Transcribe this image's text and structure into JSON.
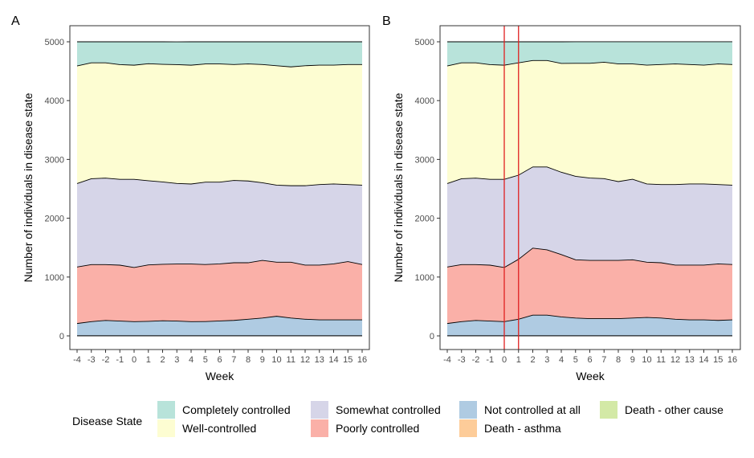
{
  "chart_data": [
    {
      "panel": "A",
      "type": "area",
      "stacked": true,
      "xlabel": "Week",
      "ylabel": "Number of individuals in disease state",
      "x": [
        -4,
        -3,
        -2,
        -1,
        0,
        1,
        2,
        3,
        4,
        5,
        6,
        7,
        8,
        9,
        10,
        11,
        12,
        13,
        14,
        15,
        16
      ],
      "xlim": [
        -4,
        16
      ],
      "ylim": [
        0,
        5000
      ],
      "yticks": [
        0,
        1000,
        2000,
        3000,
        4000,
        5000
      ],
      "series": [
        {
          "name": "Death - asthma",
          "values": [
            1,
            1,
            1,
            1,
            1,
            1,
            1,
            1,
            1,
            1,
            1,
            1,
            1,
            1,
            1,
            1,
            1,
            1,
            1,
            1,
            1
          ]
        },
        {
          "name": "Death - other cause",
          "values": [
            1,
            1,
            1,
            1,
            1,
            1,
            1,
            1,
            1,
            2,
            2,
            2,
            2,
            2,
            2,
            2,
            2,
            2,
            2,
            2,
            2
          ]
        },
        {
          "name": "Not controlled at all",
          "values": [
            208,
            240,
            260,
            250,
            240,
            245,
            255,
            250,
            240,
            240,
            250,
            260,
            280,
            300,
            330,
            300,
            280,
            270,
            270,
            270,
            270
          ]
        },
        {
          "name": "Poorly controlled",
          "values": [
            960,
            970,
            950,
            950,
            920,
            960,
            960,
            970,
            980,
            970,
            970,
            980,
            960,
            980,
            920,
            950,
            920,
            930,
            950,
            990,
            940
          ]
        },
        {
          "name": "Somewhat controlled",
          "values": [
            1420,
            1460,
            1470,
            1460,
            1500,
            1430,
            1400,
            1370,
            1360,
            1400,
            1390,
            1400,
            1390,
            1320,
            1310,
            1300,
            1350,
            1370,
            1360,
            1310,
            1350
          ]
        },
        {
          "name": "Well-controlled",
          "values": [
            2000,
            1970,
            1960,
            1950,
            1940,
            1990,
            2000,
            2020,
            2020,
            2010,
            2010,
            1970,
            1990,
            2010,
            2030,
            2020,
            2040,
            2030,
            2020,
            2040,
            2050
          ]
        },
        {
          "name": "Completely controlled",
          "values": [
            410,
            358,
            358,
            388,
            398,
            373,
            383,
            387,
            398,
            377,
            377,
            387,
            377,
            387,
            407,
            427,
            407,
            397,
            397,
            387,
            387
          ]
        }
      ],
      "vlines": []
    },
    {
      "panel": "B",
      "type": "area",
      "stacked": true,
      "xlabel": "Week",
      "ylabel": "Number of individuals in disease state",
      "x": [
        -4,
        -3,
        -2,
        -1,
        0,
        1,
        2,
        3,
        4,
        5,
        6,
        7,
        8,
        9,
        10,
        11,
        12,
        13,
        14,
        15,
        16
      ],
      "xlim": [
        -4,
        16
      ],
      "ylim": [
        0,
        5000
      ],
      "yticks": [
        0,
        1000,
        2000,
        3000,
        4000,
        5000
      ],
      "series": [
        {
          "name": "Death - asthma",
          "values": [
            1,
            1,
            1,
            1,
            1,
            1,
            1,
            1,
            1,
            1,
            1,
            1,
            1,
            1,
            1,
            1,
            1,
            1,
            1,
            1,
            1
          ]
        },
        {
          "name": "Death - other cause",
          "values": [
            1,
            1,
            1,
            1,
            1,
            1,
            1,
            1,
            1,
            2,
            2,
            2,
            2,
            2,
            2,
            2,
            2,
            2,
            2,
            2,
            2
          ]
        },
        {
          "name": "Not controlled at all",
          "values": [
            208,
            240,
            260,
            250,
            240,
            280,
            350,
            350,
            320,
            300,
            290,
            290,
            290,
            300,
            310,
            300,
            280,
            270,
            270,
            260,
            270
          ]
        },
        {
          "name": "Poorly controlled",
          "values": [
            960,
            970,
            950,
            950,
            920,
            1020,
            1140,
            1110,
            1060,
            990,
            990,
            990,
            990,
            990,
            940,
            940,
            920,
            930,
            930,
            960,
            940
          ]
        },
        {
          "name": "Somewhat controlled",
          "values": [
            1420,
            1460,
            1470,
            1460,
            1500,
            1430,
            1380,
            1410,
            1400,
            1420,
            1400,
            1390,
            1340,
            1370,
            1330,
            1330,
            1370,
            1380,
            1380,
            1350,
            1350
          ]
        },
        {
          "name": "Well-controlled",
          "values": [
            2000,
            1970,
            1960,
            1950,
            1940,
            1910,
            1810,
            1810,
            1850,
            1920,
            1950,
            1980,
            2000,
            1960,
            2020,
            2040,
            2050,
            2030,
            2020,
            2050,
            2050
          ]
        },
        {
          "name": "Completely controlled",
          "values": [
            410,
            358,
            358,
            388,
            398,
            358,
            318,
            318,
            368,
            368,
            368,
            348,
            378,
            378,
            398,
            388,
            378,
            388,
            398,
            378,
            388
          ]
        }
      ],
      "vlines": [
        0,
        1
      ]
    }
  ],
  "colors": {
    "Completely controlled": "#b8e3da",
    "Well-controlled": "#fdfdd2",
    "Somewhat controlled": "#d6d5e8",
    "Poorly controlled": "#fab0a8",
    "Not controlled at all": "#afcbe2",
    "Death - asthma": "#fdcc99",
    "Death - other cause": "#d3e9a6",
    "vline": "#e02020"
  },
  "legend": {
    "title": "Disease State",
    "items": [
      {
        "label": "Completely controlled",
        "color": "#b8e3da"
      },
      {
        "label": "Well-controlled",
        "color": "#fdfdd2"
      },
      {
        "label": "Somewhat controlled",
        "color": "#d6d5e8"
      },
      {
        "label": "Poorly controlled",
        "color": "#fab0a8"
      },
      {
        "label": "Not controlled at all",
        "color": "#afcbe2"
      },
      {
        "label": "Death - asthma",
        "color": "#fdcc99"
      },
      {
        "label": "Death - other cause",
        "color": "#d3e9a6"
      }
    ]
  }
}
